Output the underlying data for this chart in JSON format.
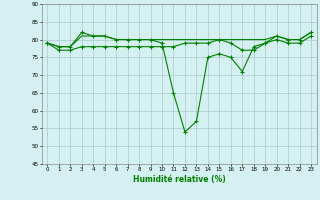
{
  "x": [
    0,
    1,
    2,
    3,
    4,
    5,
    6,
    7,
    8,
    9,
    10,
    11,
    12,
    13,
    14,
    15,
    16,
    17,
    18,
    19,
    20,
    21,
    22,
    23
  ],
  "line1": [
    79,
    78,
    78,
    82,
    81,
    81,
    80,
    80,
    80,
    80,
    79,
    65,
    54,
    57,
    75,
    76,
    75,
    71,
    78,
    79,
    81,
    80,
    80,
    82
  ],
  "line2": [
    79,
    78,
    78,
    81,
    81,
    81,
    80,
    80,
    80,
    80,
    80,
    80,
    80,
    80,
    80,
    80,
    80,
    80,
    80,
    80,
    81,
    80,
    80,
    82
  ],
  "line3": [
    79,
    77,
    77,
    78,
    78,
    78,
    78,
    78,
    78,
    78,
    78,
    78,
    79,
    79,
    79,
    80,
    79,
    77,
    77,
    79,
    80,
    79,
    79,
    81
  ],
  "line_color": "#008000",
  "bg_color": "#d4f0f0",
  "grid_color": "#aacccc",
  "xlabel": "Humidité relative (%)",
  "ylim": [
    45,
    90
  ],
  "yticks": [
    45,
    50,
    55,
    60,
    65,
    70,
    75,
    80,
    85,
    90
  ],
  "xticks": [
    0,
    1,
    2,
    3,
    4,
    5,
    6,
    7,
    8,
    9,
    10,
    11,
    12,
    13,
    14,
    15,
    16,
    17,
    18,
    19,
    20,
    21,
    22,
    23
  ]
}
